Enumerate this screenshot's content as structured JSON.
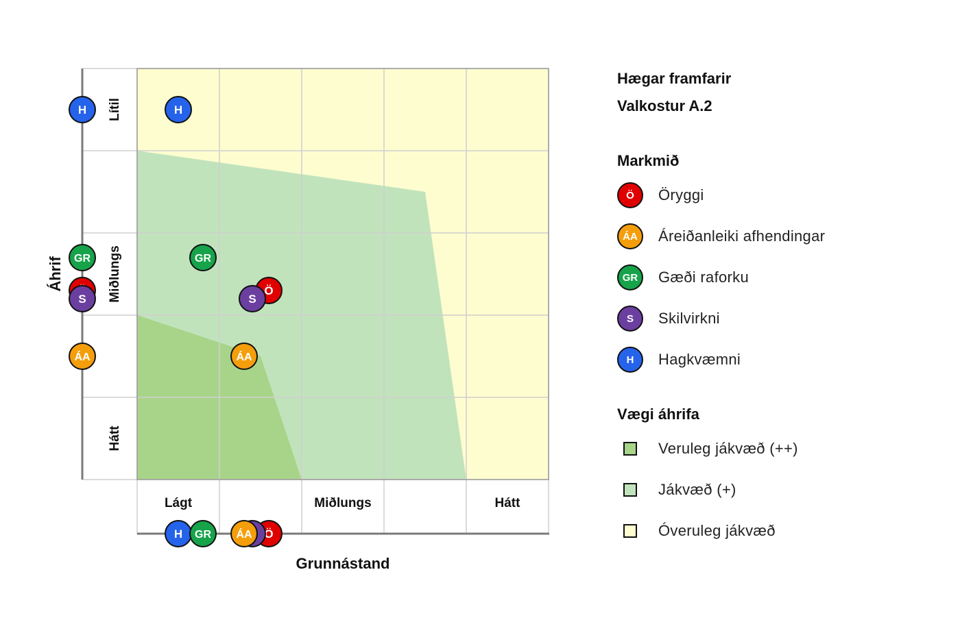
{
  "legend": {
    "title1": "Hægar framfarir",
    "title2": "Valkostur A.2",
    "goals_heading": "Markmið",
    "weight_heading": "Vægi áhrifa"
  },
  "goals": [
    {
      "code": "Ö",
      "label": "Öryggi",
      "color": "#e00000"
    },
    {
      "code": "ÁA",
      "label": "Áreiðanleiki afhendingar",
      "color": "#f59e0b"
    },
    {
      "code": "GR",
      "label": "Gæði raforku",
      "color": "#16a34a"
    },
    {
      "code": "S",
      "label": "Skilvirkni",
      "color": "#6b3fa0"
    },
    {
      "code": "H",
      "label": "Hagkvæmni",
      "color": "#2563eb"
    }
  ],
  "weights": [
    {
      "label": "Veruleg jákvæð (++)",
      "color": "#a8d48a"
    },
    {
      "label": "Jákvæð (+)",
      "color": "#c1e3bc"
    },
    {
      "label": "Óveruleg jákvæð",
      "color": "#fdfdcf"
    }
  ],
  "axes": {
    "x_title": "Grunnástand",
    "y_title": "Áhrif",
    "x_ticks": [
      "Lágt",
      "Miðlungs",
      "Hátt"
    ],
    "y_ticks": [
      "Lítil",
      "Miðlungs",
      "Hátt"
    ]
  },
  "chart_data": {
    "type": "scatter",
    "x_scale": [
      "Lágt",
      "Miðlungs",
      "Hátt"
    ],
    "y_scale": [
      "Lítil",
      "Miðlungs",
      "Hátt"
    ],
    "xlim": [
      0,
      5
    ],
    "ylim": [
      0,
      5
    ],
    "points": [
      {
        "code": "H",
        "x": 0.5,
        "y": 0.5
      },
      {
        "code": "GR",
        "x": 0.8,
        "y": 2.3
      },
      {
        "code": "Ö",
        "x": 1.6,
        "y": 2.7
      },
      {
        "code": "S",
        "x": 1.4,
        "y": 2.8
      },
      {
        "code": "ÁA",
        "x": 1.3,
        "y": 3.5
      }
    ],
    "zones": [
      {
        "weight": "Óveruleg jákvæð",
        "polygon": [
          [
            0,
            0
          ],
          [
            5,
            0
          ],
          [
            5,
            5
          ],
          [
            0,
            5
          ]
        ]
      },
      {
        "weight": "Jákvæð (+)",
        "polygon": [
          [
            0,
            1
          ],
          [
            3.5,
            1.5
          ],
          [
            4,
            5
          ],
          [
            0,
            5
          ]
        ]
      },
      {
        "weight": "Veruleg jákvæð (++)",
        "polygon": [
          [
            0,
            3
          ],
          [
            1.5,
            3.5
          ],
          [
            2,
            5
          ],
          [
            0,
            5
          ]
        ]
      }
    ],
    "grid": true
  }
}
